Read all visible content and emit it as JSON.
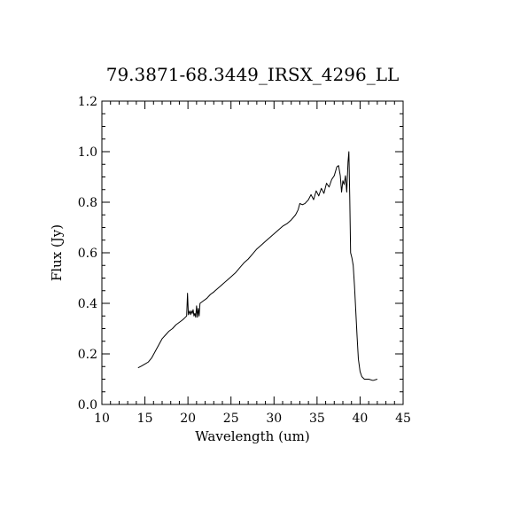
{
  "chart_data": {
    "type": "line",
    "title": "79.3871-68.3449_IRSX_4296_LL",
    "xlabel": "Wavelength (um)",
    "ylabel": "Flux (Jy)",
    "xlim": [
      10,
      45
    ],
    "ylim": [
      0,
      1.2
    ],
    "x_ticks": [
      "10",
      "15",
      "20",
      "25",
      "30",
      "35",
      "40",
      "45"
    ],
    "y_ticks": [
      "0.0",
      "0.2",
      "0.4",
      "0.6",
      "0.8",
      "1.0",
      "1.2"
    ],
    "grid": false,
    "series": [
      {
        "color": "#000000",
        "points": [
          [
            14.2,
            0.145
          ],
          [
            14.6,
            0.152
          ],
          [
            15.0,
            0.16
          ],
          [
            15.4,
            0.168
          ],
          [
            15.8,
            0.185
          ],
          [
            16.2,
            0.21
          ],
          [
            16.6,
            0.235
          ],
          [
            17.0,
            0.26
          ],
          [
            17.4,
            0.275
          ],
          [
            17.8,
            0.29
          ],
          [
            18.2,
            0.3
          ],
          [
            18.6,
            0.315
          ],
          [
            19.0,
            0.325
          ],
          [
            19.4,
            0.335
          ],
          [
            19.7,
            0.345
          ],
          [
            19.85,
            0.35
          ],
          [
            19.95,
            0.44
          ],
          [
            20.05,
            0.355
          ],
          [
            20.2,
            0.37
          ],
          [
            20.3,
            0.355
          ],
          [
            20.4,
            0.37
          ],
          [
            20.5,
            0.36
          ],
          [
            20.6,
            0.375
          ],
          [
            20.7,
            0.35
          ],
          [
            20.8,
            0.36
          ],
          [
            20.9,
            0.345
          ],
          [
            21.0,
            0.39
          ],
          [
            21.1,
            0.345
          ],
          [
            21.2,
            0.38
          ],
          [
            21.3,
            0.35
          ],
          [
            21.4,
            0.4
          ],
          [
            21.8,
            0.41
          ],
          [
            22.2,
            0.42
          ],
          [
            22.6,
            0.435
          ],
          [
            23.0,
            0.445
          ],
          [
            23.5,
            0.46
          ],
          [
            24.0,
            0.475
          ],
          [
            24.5,
            0.49
          ],
          [
            25.0,
            0.505
          ],
          [
            25.5,
            0.52
          ],
          [
            26.0,
            0.54
          ],
          [
            26.5,
            0.56
          ],
          [
            27.0,
            0.575
          ],
          [
            27.5,
            0.595
          ],
          [
            28.0,
            0.615
          ],
          [
            28.5,
            0.63
          ],
          [
            29.0,
            0.645
          ],
          [
            29.5,
            0.66
          ],
          [
            30.0,
            0.675
          ],
          [
            30.5,
            0.69
          ],
          [
            31.0,
            0.705
          ],
          [
            31.5,
            0.715
          ],
          [
            32.0,
            0.73
          ],
          [
            32.5,
            0.75
          ],
          [
            32.8,
            0.77
          ],
          [
            33.0,
            0.795
          ],
          [
            33.3,
            0.79
          ],
          [
            33.6,
            0.795
          ],
          [
            34.0,
            0.81
          ],
          [
            34.3,
            0.83
          ],
          [
            34.6,
            0.81
          ],
          [
            34.9,
            0.845
          ],
          [
            35.2,
            0.825
          ],
          [
            35.5,
            0.855
          ],
          [
            35.8,
            0.835
          ],
          [
            36.1,
            0.875
          ],
          [
            36.4,
            0.86
          ],
          [
            36.7,
            0.89
          ],
          [
            37.0,
            0.905
          ],
          [
            37.3,
            0.94
          ],
          [
            37.5,
            0.945
          ],
          [
            37.7,
            0.905
          ],
          [
            37.85,
            0.84
          ],
          [
            38.0,
            0.885
          ],
          [
            38.15,
            0.87
          ],
          [
            38.3,
            0.905
          ],
          [
            38.45,
            0.84
          ],
          [
            38.6,
            0.96
          ],
          [
            38.7,
            1.0
          ],
          [
            38.8,
            0.82
          ],
          [
            38.9,
            0.6
          ],
          [
            39.05,
            0.58
          ],
          [
            39.2,
            0.55
          ],
          [
            39.35,
            0.47
          ],
          [
            39.5,
            0.37
          ],
          [
            39.65,
            0.27
          ],
          [
            39.8,
            0.18
          ],
          [
            40.0,
            0.13
          ],
          [
            40.2,
            0.11
          ],
          [
            40.5,
            0.1
          ],
          [
            41.0,
            0.1
          ],
          [
            41.5,
            0.095
          ],
          [
            42.0,
            0.1
          ]
        ]
      }
    ]
  }
}
